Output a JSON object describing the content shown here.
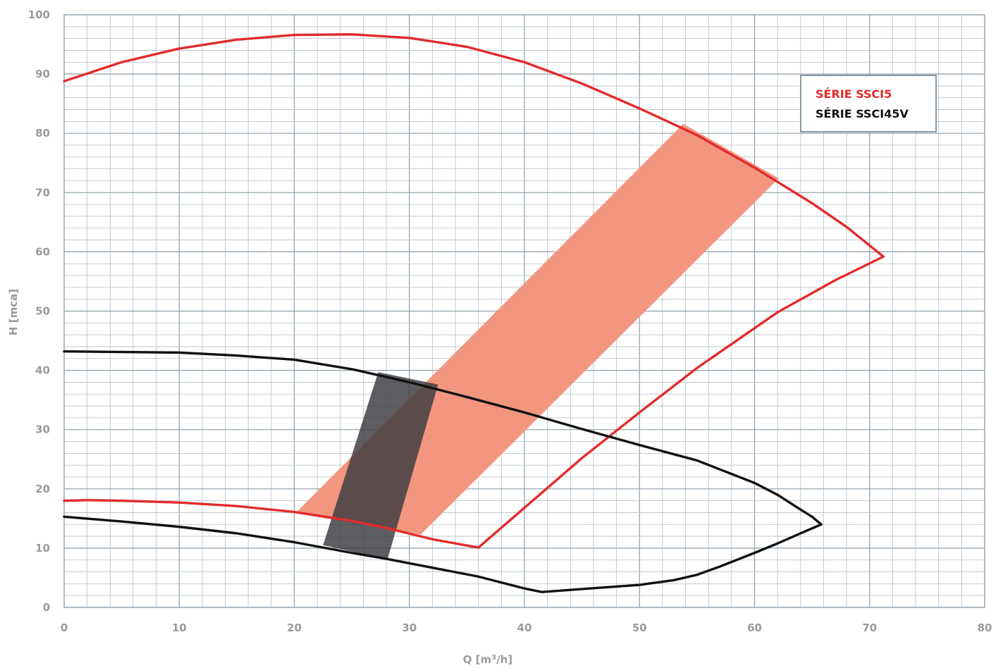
{
  "chart_data": {
    "type": "line",
    "title": "",
    "xlabel": "Q [m³/h]",
    "ylabel": "H [mca]",
    "xlim": [
      0,
      80
    ],
    "ylim": [
      0,
      100
    ],
    "x_major_ticks": [
      0,
      10,
      20,
      30,
      40,
      50,
      60,
      70,
      80
    ],
    "y_major_ticks": [
      0,
      10,
      20,
      30,
      40,
      50,
      60,
      70,
      80,
      90,
      100
    ],
    "x_minor_step": 2,
    "y_minor_step": 2,
    "grid": true,
    "legend_position": "top-right",
    "series": [
      {
        "name": "SÉRIE SSCI5",
        "color": "#e32b2b",
        "outline": [
          [
            0,
            88.8
          ],
          [
            5,
            92
          ],
          [
            10,
            94.3
          ],
          [
            15,
            95.8
          ],
          [
            20,
            96.6
          ],
          [
            25,
            96.7
          ],
          [
            30,
            96.1
          ],
          [
            35,
            94.6
          ],
          [
            40,
            92
          ],
          [
            45,
            88.4
          ],
          [
            50,
            84.2
          ],
          [
            55,
            79.7
          ],
          [
            60,
            74.2
          ],
          [
            65,
            68.2
          ],
          [
            68,
            64.2
          ],
          [
            71.2,
            59.2
          ],
          [
            67,
            55.2
          ],
          [
            62,
            49.8
          ],
          [
            55,
            40.4
          ],
          [
            50,
            32.9
          ],
          [
            45,
            25.2
          ],
          [
            40,
            16.8
          ],
          [
            36,
            10.1
          ],
          [
            32,
            11.5
          ],
          [
            28,
            13.4
          ],
          [
            25,
            14.6
          ],
          [
            20,
            16.1
          ],
          [
            15,
            17.1
          ],
          [
            10,
            17.7
          ],
          [
            5,
            18
          ],
          [
            2,
            18.1
          ],
          [
            0,
            18
          ]
        ],
        "band": [
          [
            53.8,
            81.6
          ],
          [
            62.1,
            72.4
          ],
          [
            31,
            12.3
          ],
          [
            20.1,
            15.9
          ]
        ],
        "band_color": "#f29680"
      },
      {
        "name": "SÉRIE SSCI45V",
        "color": "#111111",
        "outline": [
          [
            0,
            43.2
          ],
          [
            10,
            43
          ],
          [
            15,
            42.5
          ],
          [
            20,
            41.8
          ],
          [
            25,
            40.2
          ],
          [
            30,
            38
          ],
          [
            35,
            35.5
          ],
          [
            40,
            32.9
          ],
          [
            45,
            30.1
          ],
          [
            50,
            27.4
          ],
          [
            55,
            24.8
          ],
          [
            60,
            21
          ],
          [
            62,
            19
          ],
          [
            64,
            16.5
          ],
          [
            65,
            15.3
          ],
          [
            65.8,
            14
          ],
          [
            64,
            12.5
          ],
          [
            62,
            10.8
          ],
          [
            60,
            9.2
          ],
          [
            57,
            6.9
          ],
          [
            55,
            5.5
          ],
          [
            53,
            4.6
          ],
          [
            50,
            3.8
          ],
          [
            45,
            3.1
          ],
          [
            41.5,
            2.6
          ],
          [
            40,
            3.2
          ],
          [
            36,
            5.2
          ],
          [
            32,
            6.7
          ],
          [
            28,
            8.2
          ],
          [
            25,
            9.2
          ],
          [
            20,
            11
          ],
          [
            15,
            12.5
          ],
          [
            10,
            13.6
          ],
          [
            5,
            14.5
          ],
          [
            0,
            15.3
          ]
        ],
        "band": [
          [
            27.3,
            39.7
          ],
          [
            32.5,
            37.6
          ],
          [
            28.1,
            8.1
          ],
          [
            22.5,
            10.5
          ]
        ],
        "band_color": "#3a3a40"
      }
    ]
  }
}
